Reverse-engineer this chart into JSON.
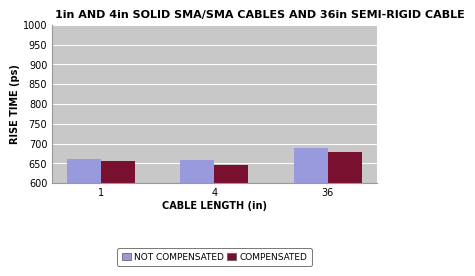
{
  "title": "1in AND 4in SOLID SMA/SMA CABLES AND 36in SEMI-RIGID CABLE",
  "xlabel": "CABLE LENGTH (in)",
  "ylabel": "RISE TIME (ps)",
  "categories": [
    "1",
    "4",
    "36"
  ],
  "not_compensated": [
    662,
    659,
    688
  ],
  "compensated": [
    655,
    646,
    679
  ],
  "ylim": [
    600,
    1000
  ],
  "yticks": [
    600,
    650,
    700,
    750,
    800,
    850,
    900,
    950,
    1000
  ],
  "bar_color_nc": "#9999dd",
  "bar_color_c": "#7a1030",
  "bg_color": "#c8c8c8",
  "legend_nc": "NOT COMPENSATED",
  "legend_c": "COMPENSATED",
  "title_fontsize": 8.0,
  "axis_label_fontsize": 7.0,
  "tick_fontsize": 7.0,
  "legend_fontsize": 6.5,
  "bar_width": 0.3
}
